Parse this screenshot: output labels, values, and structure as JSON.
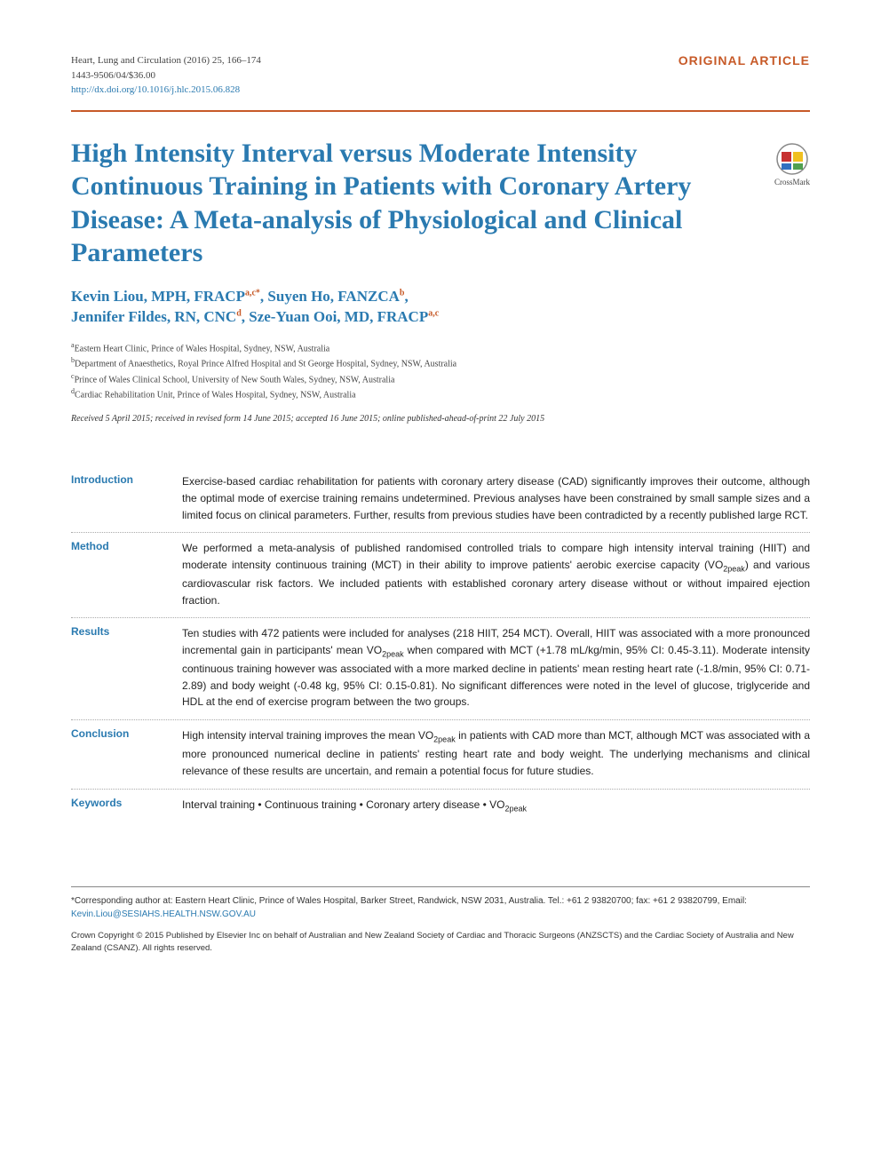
{
  "header": {
    "journal_line": "Heart, Lung and Circulation (2016) 25, 166–174",
    "issn_line": "1443-9506/04/$36.00",
    "doi_url": "http://dx.doi.org/10.1016/j.hlc.2015.06.828",
    "article_type": "ORIGINAL ARTICLE"
  },
  "colors": {
    "accent_blue": "#2a7ab0",
    "accent_orange": "#c75a28",
    "text": "#333333",
    "background": "#ffffff"
  },
  "title": "High Intensity Interval versus Moderate Intensity Continuous Training in Patients with Coronary Artery Disease: A Meta-analysis of Physiological and Clinical Parameters",
  "crossmark_label": "CrossMark",
  "authors_html": "Kevin Liou, MPH, FRACP|a,c*|, Suyen Ho, FANZCA|b|, Jennifer Fildes, RN, CNC|d|, Sze-Yuan Ooi, MD, FRACP|a,c|",
  "affiliations": [
    {
      "sup": "a",
      "text": "Eastern Heart Clinic, Prince of Wales Hospital, Sydney, NSW, Australia"
    },
    {
      "sup": "b",
      "text": "Department of Anaesthetics, Royal Prince Alfred Hospital and St George Hospital, Sydney, NSW, Australia"
    },
    {
      "sup": "c",
      "text": "Prince of Wales Clinical School, University of New South Wales, Sydney, NSW, Australia"
    },
    {
      "sup": "d",
      "text": "Cardiac Rehabilitation Unit, Prince of Wales Hospital, Sydney, NSW, Australia"
    }
  ],
  "history": "Received 5 April 2015; received in revised form 14 June 2015; accepted 16 June 2015; online published-ahead-of-print 22 July 2015",
  "abstract": [
    {
      "label": "Introduction",
      "text": "Exercise-based cardiac rehabilitation for patients with coronary artery disease (CAD) significantly improves their outcome, although the optimal mode of exercise training remains undetermined. Previous analyses have been constrained by small sample sizes and a limited focus on clinical parameters. Further, results from previous studies have been contradicted by a recently published large RCT."
    },
    {
      "label": "Method",
      "text": "We performed a meta-analysis of published randomised controlled trials to compare high intensity interval training (HIIT) and moderate intensity continuous training (MCT) in their ability to improve patients' aerobic exercise capacity (VO<sub>2peak</sub>) and various cardiovascular risk factors. We included patients with established coronary artery disease without or without impaired ejection fraction."
    },
    {
      "label": "Results",
      "text": "Ten studies with 472 patients were included for analyses (218 HIIT, 254 MCT). Overall, HIIT was associated with a more pronounced incremental gain in participants' mean VO<sub>2peak</sub> when compared with MCT (+1.78 mL/kg/min, 95% CI: 0.45-3.11). Moderate intensity continuous training however was associated with a more marked decline in patients' mean resting heart rate (-1.8/min, 95% CI: 0.71-2.89) and body weight (-0.48 kg, 95% CI: 0.15-0.81). No significant differences were noted in the level of glucose, triglyceride and HDL at the end of exercise program between the two groups."
    },
    {
      "label": "Conclusion",
      "text": "High intensity interval training improves the mean VO<sub>2peak</sub> in patients with CAD more than MCT, although MCT was associated with a more pronounced numerical decline in patients' resting heart rate and body weight. The underlying mechanisms and clinical relevance of these results are uncertain, and remain a potential focus for future studies."
    },
    {
      "label": "Keywords",
      "text": "Interval training  •  Continuous training  •  Coronary artery disease  •  VO<sub>2peak</sub>"
    }
  ],
  "footnote": {
    "corresponding": "*Corresponding author at: Eastern Heart Clinic, Prince of Wales Hospital, Barker Street, Randwick, NSW 2031, Australia. Tel.: +61 2 93820700; fax: +61 2 93820799, Email: ",
    "email": "Kevin.Liou@SESIAHS.HEALTH.NSW.GOV.AU"
  },
  "copyright": "Crown Copyright © 2015 Published by Elsevier Inc on behalf of Australian and New Zealand Society of Cardiac and Thoracic Surgeons (ANZSCTS) and the Cardiac Society of Australia and New Zealand (CSANZ). All rights reserved."
}
